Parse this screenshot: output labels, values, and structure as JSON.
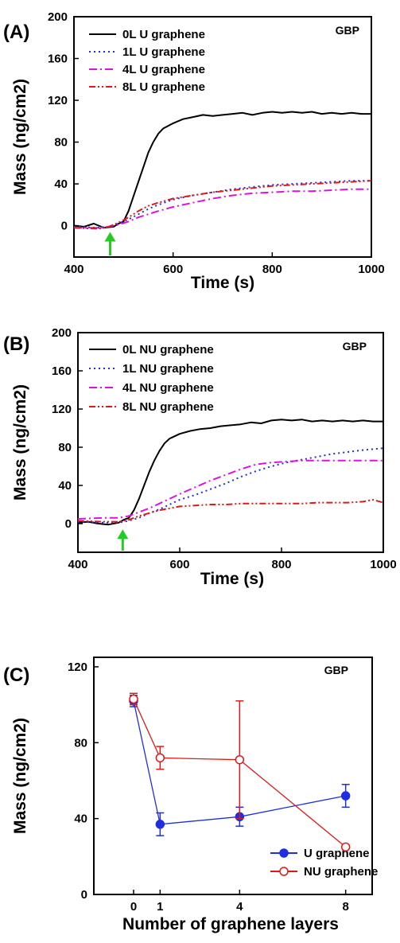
{
  "chart_data": [
    {
      "panel_label": "(A)",
      "type": "line",
      "annotation": "GBP",
      "xlabel": "Time (s)",
      "ylabel": "Mass (ng/cm2)",
      "xlim": [
        400,
        1000
      ],
      "ylim": [
        -30,
        200
      ],
      "xticks": [
        400,
        600,
        800,
        1000
      ],
      "yticks": [
        0,
        40,
        80,
        120,
        160,
        200
      ],
      "arrow_at_x": 473,
      "arrow_color": "#22cc22",
      "legend_position": "top-left",
      "series": [
        {
          "name": "0L U graphene",
          "color": "#000000",
          "dash": "solid",
          "x": [
            400,
            420,
            440,
            460,
            480,
            490,
            500,
            510,
            520,
            530,
            540,
            550,
            560,
            570,
            580,
            600,
            620,
            640,
            660,
            680,
            700,
            720,
            740,
            760,
            780,
            800,
            820,
            840,
            860,
            880,
            900,
            920,
            940,
            960,
            980,
            1000
          ],
          "y": [
            0,
            -1,
            2,
            -2,
            -1,
            2,
            4,
            14,
            28,
            42,
            56,
            70,
            80,
            88,
            93,
            98,
            102,
            104,
            106,
            105,
            106,
            107,
            108,
            106,
            108,
            109,
            108,
            109,
            108,
            109,
            107,
            108,
            107,
            108,
            107,
            107
          ]
        },
        {
          "name": "1L U graphene",
          "color": "#1f2fe0",
          "dash": "dot",
          "x": [
            400,
            450,
            470,
            490,
            510,
            530,
            550,
            570,
            600,
            640,
            680,
            720,
            760,
            800,
            840,
            880,
            920,
            960,
            1000
          ],
          "y": [
            -1,
            -2,
            -1,
            2,
            6,
            11,
            16,
            20,
            25,
            29,
            32,
            35,
            37,
            39,
            40,
            41,
            42,
            43,
            43
          ]
        },
        {
          "name": "4L U graphene",
          "color": "#e010e0",
          "dash": "dashdot",
          "x": [
            400,
            450,
            470,
            490,
            510,
            530,
            550,
            570,
            600,
            640,
            680,
            720,
            760,
            800,
            840,
            880,
            920,
            960,
            1000
          ],
          "y": [
            -2,
            -2,
            -1,
            1,
            4,
            8,
            11,
            14,
            18,
            22,
            26,
            29,
            31,
            32,
            33,
            33,
            34,
            35,
            35
          ]
        },
        {
          "name": "8L U graphene",
          "color": "#e01818",
          "dash": "dashdotdot",
          "x": [
            400,
            450,
            470,
            490,
            510,
            530,
            550,
            570,
            600,
            640,
            680,
            720,
            760,
            800,
            840,
            880,
            920,
            960,
            1000
          ],
          "y": [
            -2,
            -3,
            -1,
            3,
            8,
            14,
            19,
            22,
            26,
            29,
            32,
            34,
            36,
            38,
            39,
            40,
            41,
            42,
            43
          ]
        }
      ]
    },
    {
      "panel_label": "(B)",
      "type": "line",
      "annotation": "GBP",
      "xlabel": "Time (s)",
      "ylabel": "Mass (ng/cm2)",
      "xlim": [
        400,
        1000
      ],
      "ylim": [
        -30,
        200
      ],
      "xticks": [
        400,
        600,
        800,
        1000
      ],
      "yticks": [
        0,
        40,
        80,
        120,
        160,
        200
      ],
      "arrow_at_x": 488,
      "arrow_color": "#22cc22",
      "legend_position": "top-left",
      "series": [
        {
          "name": "0L NU graphene",
          "color": "#000000",
          "dash": "solid",
          "x": [
            400,
            420,
            440,
            460,
            480,
            490,
            500,
            510,
            520,
            530,
            540,
            550,
            560,
            570,
            580,
            600,
            620,
            640,
            660,
            680,
            700,
            720,
            740,
            760,
            780,
            800,
            820,
            840,
            860,
            880,
            900,
            920,
            940,
            960,
            980,
            1000
          ],
          "y": [
            1,
            2,
            0,
            -1,
            1,
            4,
            6,
            14,
            26,
            40,
            54,
            66,
            76,
            84,
            89,
            94,
            97,
            99,
            100,
            102,
            103,
            104,
            106,
            105,
            108,
            109,
            108,
            109,
            107,
            108,
            107,
            108,
            107,
            108,
            107,
            107
          ]
        },
        {
          "name": "1L NU graphene",
          "color": "#1f2fe0",
          "dash": "dot",
          "x": [
            400,
            450,
            480,
            500,
            520,
            540,
            560,
            580,
            600,
            630,
            660,
            690,
            720,
            750,
            780,
            810,
            840,
            870,
            900,
            930,
            960,
            1000
          ],
          "y": [
            2,
            1,
            1,
            3,
            6,
            11,
            15,
            20,
            25,
            30,
            36,
            42,
            49,
            55,
            60,
            64,
            67,
            70,
            73,
            75,
            77,
            79
          ]
        },
        {
          "name": "4L NU graphene",
          "color": "#e010e0",
          "dash": "dashdot",
          "x": [
            400,
            450,
            480,
            500,
            520,
            540,
            560,
            580,
            600,
            630,
            660,
            690,
            720,
            750,
            780,
            810,
            840,
            870,
            900,
            930,
            960,
            1000
          ],
          "y": [
            5,
            6,
            6,
            8,
            12,
            16,
            21,
            26,
            31,
            38,
            45,
            51,
            57,
            62,
            64,
            65,
            66,
            66,
            66,
            66,
            66,
            66
          ]
        },
        {
          "name": "8L NU graphene",
          "color": "#e01818",
          "dash": "dashdotdot",
          "x": [
            400,
            450,
            480,
            500,
            520,
            540,
            560,
            580,
            600,
            630,
            660,
            690,
            720,
            750,
            780,
            810,
            840,
            870,
            900,
            930,
            960,
            980,
            1000
          ],
          "y": [
            3,
            2,
            2,
            4,
            8,
            11,
            14,
            16,
            18,
            19,
            20,
            20,
            21,
            21,
            21,
            21,
            21,
            22,
            22,
            22,
            23,
            25,
            22
          ]
        }
      ]
    },
    {
      "panel_label": "(C)",
      "type": "line",
      "annotation": "GBP",
      "xlabel": "Number of graphene layers",
      "ylabel": "Mass (ng/cm2)",
      "xlim": [
        -1.5,
        9
      ],
      "ylim": [
        0,
        125
      ],
      "xticks": [
        0,
        1,
        4,
        8
      ],
      "yticks": [
        0,
        40,
        80,
        120
      ],
      "legend_position": "bottom-right",
      "series": [
        {
          "name": "U graphene",
          "color": "#1f2fe0",
          "marker": "filled-circle",
          "x": [
            0,
            1,
            4,
            8
          ],
          "y": [
            102,
            37,
            41,
            52
          ],
          "err": [
            3,
            6,
            5,
            6
          ]
        },
        {
          "name": "NU graphene",
          "color": "#e01818",
          "marker": "open-circle",
          "x": [
            0,
            1,
            4,
            8
          ],
          "y": [
            103,
            72,
            71,
            25
          ],
          "err": [
            3,
            6,
            31,
            1
          ]
        }
      ]
    }
  ]
}
